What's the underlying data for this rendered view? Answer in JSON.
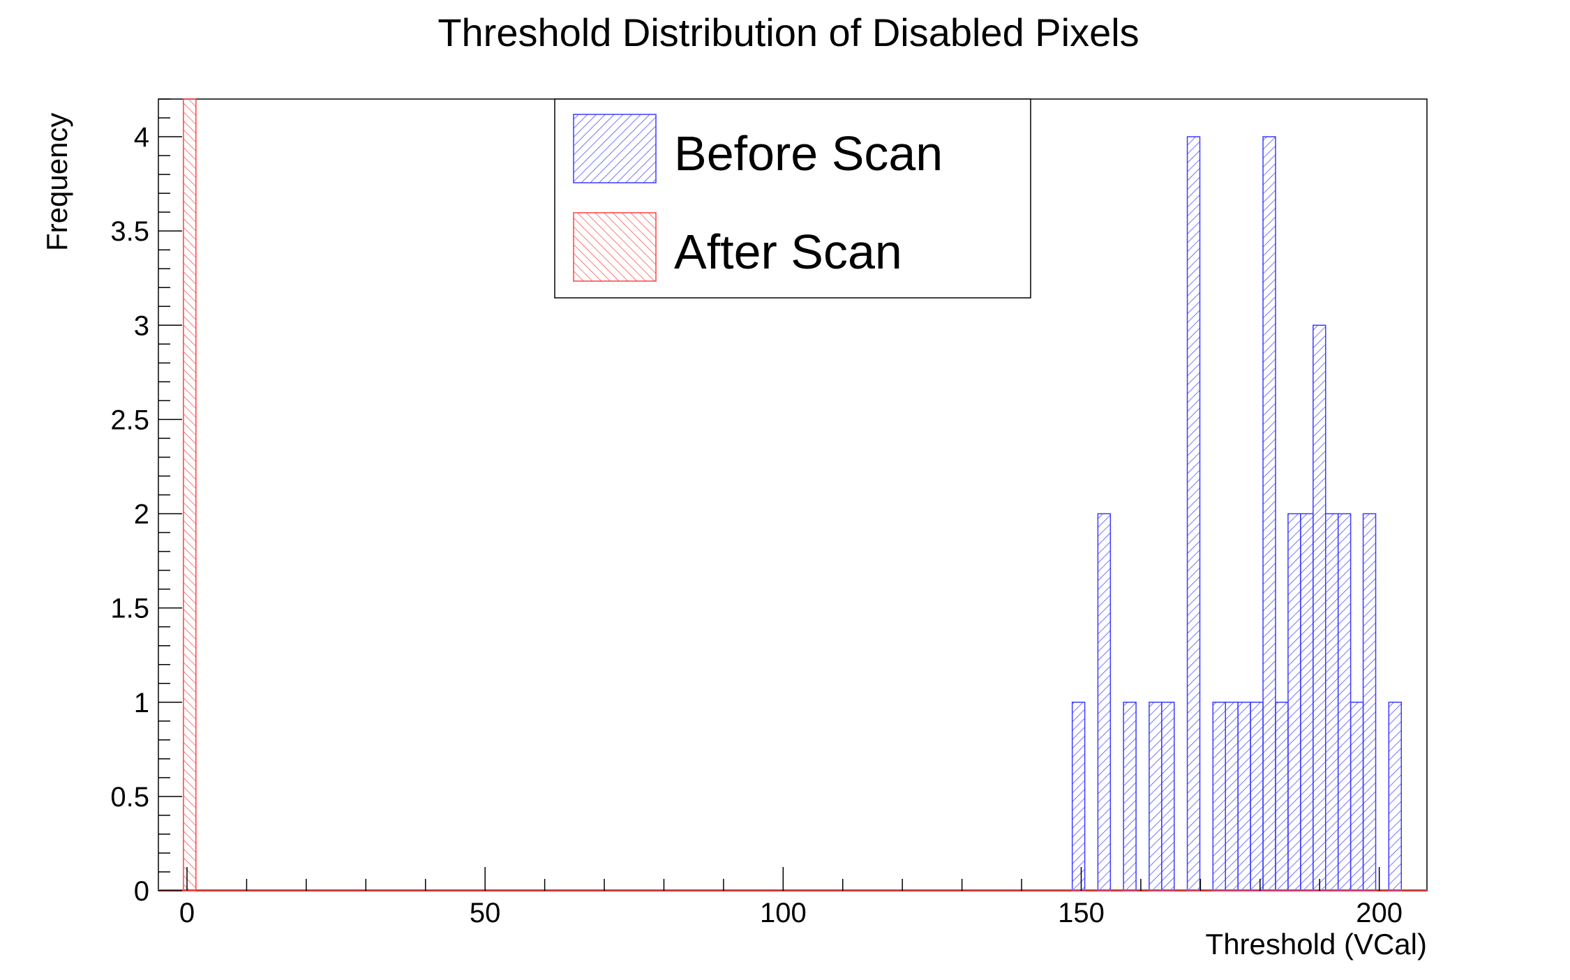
{
  "chart_data": {
    "type": "bar",
    "title": "Threshold Distribution of Disabled Pixels",
    "xlabel": "Threshold (VCal)",
    "ylabel": "Frequency",
    "xlim": [
      -4.8,
      208
    ],
    "ylim": [
      0,
      4.2
    ],
    "bin_width": 2.1,
    "x_ticks": [
      0,
      50,
      100,
      150,
      200
    ],
    "y_ticks": [
      0,
      0.5,
      1,
      1.5,
      2,
      2.5,
      3,
      3.5,
      4
    ],
    "y_tick_labels": [
      "0",
      "0.5",
      "1",
      "1.5",
      "2",
      "2.5",
      "3",
      "3.5",
      "4"
    ],
    "grid": false,
    "legend_position": "top-center",
    "series": [
      {
        "name": "Before Scan",
        "color": "#3b3bff",
        "hatch": "forward-diagonal",
        "bins": [
          {
            "x_start": 148.5,
            "value": 1
          },
          {
            "x_start": 152.8,
            "value": 2
          },
          {
            "x_start": 157.1,
            "value": 1
          },
          {
            "x_start": 161.4,
            "value": 1
          },
          {
            "x_start": 163.5,
            "value": 1
          },
          {
            "x_start": 167.8,
            "value": 4
          },
          {
            "x_start": 172.1,
            "value": 1
          },
          {
            "x_start": 174.2,
            "value": 1
          },
          {
            "x_start": 176.3,
            "value": 1
          },
          {
            "x_start": 178.4,
            "value": 1
          },
          {
            "x_start": 180.5,
            "value": 4
          },
          {
            "x_start": 182.6,
            "value": 1
          },
          {
            "x_start": 184.7,
            "value": 2
          },
          {
            "x_start": 186.8,
            "value": 2
          },
          {
            "x_start": 188.9,
            "value": 3
          },
          {
            "x_start": 191.0,
            "value": 2
          },
          {
            "x_start": 193.1,
            "value": 2
          },
          {
            "x_start": 195.2,
            "value": 1
          },
          {
            "x_start": 197.3,
            "value": 2
          },
          {
            "x_start": 201.6,
            "value": 1
          }
        ]
      },
      {
        "name": "After Scan",
        "color": "#ff4040",
        "hatch": "backward-diagonal",
        "bins": [
          {
            "x_start": -0.6,
            "value": 4.2
          }
        ]
      }
    ]
  }
}
